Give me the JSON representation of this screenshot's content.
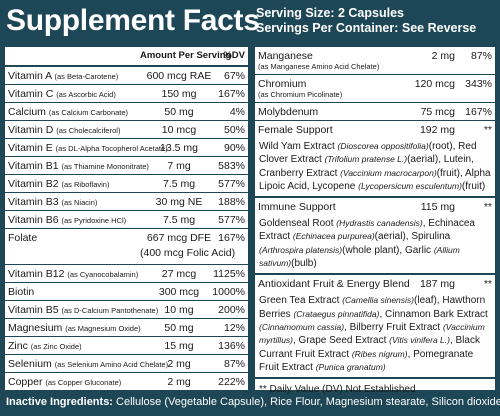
{
  "header": {
    "title": "Supplement Facts",
    "serving_size": "Serving Size: 2 Capsules",
    "servings_per_container": "Servings Per Container: See Reverse"
  },
  "table": {
    "columns": [
      "Amount Per Serving",
      "%DV"
    ],
    "rows": [
      {
        "name": "Vitamin A",
        "source": "(as Beta-Carotene)",
        "amount": "600 mcg RAE",
        "dv": "67%"
      },
      {
        "name": "Vitamin C",
        "source": "(as Ascorbic Acid)",
        "amount": "150 mg",
        "dv": "167%"
      },
      {
        "name": "Calcium",
        "source": "(as Calcium Carbonate)",
        "amount": "50 mg",
        "dv": "4%"
      },
      {
        "name": "Vitamin D",
        "source": "(as Cholecalciferol)",
        "amount": "10 mcg",
        "dv": "50%"
      },
      {
        "name": "Vitamin E",
        "source": "(as DL-Alpha Tocopherol Acetate)",
        "amount": "13.5 mg",
        "dv": "90%"
      },
      {
        "name": "Vitamin B1",
        "source": "(as Thiamine Mononitrate)",
        "amount": "7 mg",
        "dv": "583%"
      },
      {
        "name": "Vitamin B2",
        "source": "(as Riboflavin)",
        "amount": "7.5 mg",
        "dv": "577%"
      },
      {
        "name": "Vitamin B3",
        "source": "(as Niacin)",
        "amount": "30 mg NE",
        "dv": "188%"
      },
      {
        "name": "Vitamin B6",
        "source": "(as Pyridoxine HCl)",
        "amount": "7.5 mg",
        "dv": "577%"
      },
      {
        "name": "Folate",
        "amount": "667 mcg DFE",
        "amount_note": "(400 mcg Folic Acid)",
        "dv": "167%"
      },
      {
        "name": "Vitamin B12",
        "source": "(as Cyanocobalamin)",
        "amount": "27 mcg",
        "dv": "1125%"
      },
      {
        "name": "Biotin",
        "amount": "300 mcg",
        "dv": "1000%"
      },
      {
        "name": "Vitamin B5",
        "source": "(as D-Calcium Pantothenate)",
        "amount": "10 mg",
        "dv": "200%"
      },
      {
        "name": "Magnesium",
        "source": "(as Magnesium Oxide)",
        "amount": "50 mg",
        "dv": "12%"
      },
      {
        "name": "Zinc",
        "source": "(as Zinc Oxide)",
        "amount": "15 mg",
        "dv": "136%"
      },
      {
        "name": "Selenium",
        "source": "(as Selenium Amino Acid Chelate)",
        "amount": "2 mg",
        "dv": "87%"
      },
      {
        "name": "Copper",
        "source": "(as Copper Gluconate)",
        "amount": "2 mg",
        "dv": "222%"
      }
    ]
  },
  "right_panel": {
    "items": [
      {
        "kind": "nutrient",
        "name": "Manganese",
        "source": "(as Manganese Amino Acid Chelate)",
        "amount": "2 mg",
        "dv": "87%"
      },
      {
        "kind": "nutrient",
        "name": "Chromium",
        "source": "(as Chromium Picolinate)",
        "amount": "120 mcg",
        "dv": "343%"
      },
      {
        "kind": "nutrient",
        "name": "Molybdenum",
        "amount": "75 mcg",
        "dv": "167%"
      },
      {
        "kind": "blend",
        "name": "Female Support",
        "amount": "192 mg",
        "dv": "**",
        "segments": [
          {
            "text": "Wild Yam Extract ",
            "italic": false
          },
          {
            "text": "(Dioscorea oppositifolia)",
            "italic": true
          },
          {
            "text": "(root), Red Clover Extract ",
            "italic": false
          },
          {
            "text": "(Trifolium pratense L.)",
            "italic": true
          },
          {
            "text": "(aerial), Lutein, Cranberry Extract ",
            "italic": false
          },
          {
            "text": "(Vaccinium macrocarpon)",
            "italic": true
          },
          {
            "text": "(fruit), Alpha Lipoic Acid, Lycopene ",
            "italic": false
          },
          {
            "text": "(Lycopersicum esculentum)",
            "italic": true
          },
          {
            "text": "(fruit)",
            "italic": false
          }
        ]
      },
      {
        "kind": "blend",
        "name": "Immune Support",
        "amount": "115 mg",
        "dv": "**",
        "segments": [
          {
            "text": "Goldenseal Root ",
            "italic": false
          },
          {
            "text": "(Hydrastis canadensis)",
            "italic": true
          },
          {
            "text": ", Echinacea Extract ",
            "italic": false
          },
          {
            "text": "(Echinacea purpurea)",
            "italic": true
          },
          {
            "text": "(aerial), Spirulina ",
            "italic": false
          },
          {
            "text": "(Arthrospira platensis)",
            "italic": true
          },
          {
            "text": "(whole plant), Garlic ",
            "italic": false
          },
          {
            "text": "(Allium sativum)",
            "italic": true
          },
          {
            "text": "(bulb)",
            "italic": false
          }
        ]
      },
      {
        "kind": "blend",
        "name": "Antioxidant Fruit & Energy Blend",
        "amount": "187 mg",
        "dv": "**",
        "segments": [
          {
            "text": "Green Tea Extract ",
            "italic": false
          },
          {
            "text": "(Camellia sinensis)",
            "italic": true
          },
          {
            "text": "(leaf), Hawthorn Berries ",
            "italic": false
          },
          {
            "text": "(Crataegus pinnatifida)",
            "italic": true
          },
          {
            "text": ", Cinnamon Bark Extract ",
            "italic": false
          },
          {
            "text": "(Cinnamomum cassia)",
            "italic": true
          },
          {
            "text": ", Bilberry Fruit Extract ",
            "italic": false
          },
          {
            "text": "(Vaccinium myrtillus)",
            "italic": true
          },
          {
            "text": ", Grape Seed Extract ",
            "italic": false
          },
          {
            "text": "(Vitis vinifera L.)",
            "italic": true
          },
          {
            "text": ", Black Currant Fruit Extract ",
            "italic": false
          },
          {
            "text": "(Ribes nigrum)",
            "italic": true
          },
          {
            "text": ", Pomegranate Fruit Extract ",
            "italic": false
          },
          {
            "text": "(Punica granatum)",
            "italic": true
          }
        ]
      }
    ],
    "footnote": "** Daily Value (DV) Not Established"
  },
  "inactive": {
    "label": "Inactive Ingredients:",
    "text": " Cellulose (Vegetable Capsule), Rice Flour, Magnesium stearate, Silicon dioxide"
  }
}
